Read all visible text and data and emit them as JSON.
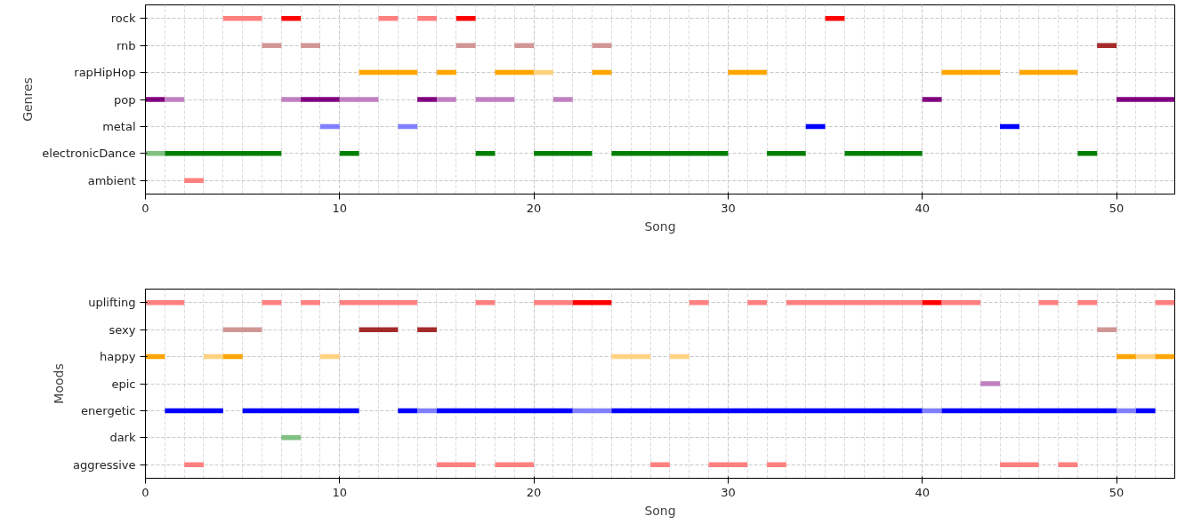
{
  "chart_data": [
    {
      "type": "bar",
      "orientation": "horizontal",
      "xlabel": "Song",
      "ylabel": "Genres",
      "categories": [
        "rock",
        "rnb",
        "rapHipHop",
        "pop",
        "metal",
        "electronicDance",
        "ambient"
      ],
      "xlim": [
        0,
        53
      ],
      "xticks": [
        0,
        10,
        20,
        30,
        40,
        50
      ],
      "grid": true,
      "series": [
        {
          "base": [
            4,
            6,
            11,
            0,
            9,
            0,
            2
          ],
          "values": [
            2,
            1,
            3,
            1,
            1,
            1,
            1
          ],
          "colors": [
            "#ff8080",
            "#d29595",
            "#ffa500",
            "#800080",
            "#8080ff",
            "#80c080",
            "#ff8080"
          ]
        },
        {
          "base": [
            7,
            8,
            15,
            1,
            13,
            1,
            null
          ],
          "values": [
            1,
            1,
            1,
            1,
            1,
            6,
            null
          ],
          "colors": [
            "#ff0000",
            "#d29595",
            "#ffa500",
            "#c080c0",
            "#8080ff",
            "#008000",
            null
          ]
        },
        {
          "base": [
            12,
            16,
            18,
            7,
            34,
            10,
            null
          ],
          "values": [
            1,
            1,
            2,
            1,
            1,
            1,
            null
          ],
          "colors": [
            "#ff8080",
            "#d29595",
            "#ffa500",
            "#c080c0",
            "#0000ff",
            "#008000",
            null
          ]
        },
        {
          "base": [
            14,
            19,
            20,
            8,
            44,
            17,
            null
          ],
          "values": [
            1,
            1,
            1,
            2,
            1,
            1,
            null
          ],
          "colors": [
            "#ff8080",
            "#d29595",
            "#ffd280",
            "#800080",
            "#0000ff",
            "#008000",
            null
          ]
        },
        {
          "base": [
            16,
            23,
            23,
            10,
            null,
            20,
            null
          ],
          "values": [
            1,
            1,
            1,
            2,
            null,
            3,
            null
          ],
          "colors": [
            "#ff0000",
            "#d29595",
            "#ffa500",
            "#c080c0",
            null,
            "#008000",
            null
          ]
        },
        {
          "base": [
            35,
            49,
            30,
            14,
            null,
            24,
            null
          ],
          "values": [
            1,
            1,
            2,
            1,
            null,
            6,
            null
          ],
          "colors": [
            "#ff0000",
            "#a52a2a",
            "#ffa500",
            "#800080",
            null,
            "#008000",
            null
          ]
        },
        {
          "base": [
            null,
            null,
            41,
            15,
            null,
            32,
            null
          ],
          "values": [
            null,
            null,
            3,
            1,
            null,
            2,
            null
          ],
          "colors": [
            null,
            null,
            "#ffa500",
            "#c080c0",
            null,
            "#008000",
            null
          ]
        },
        {
          "base": [
            null,
            null,
            45,
            17,
            null,
            36,
            null
          ],
          "values": [
            null,
            null,
            3,
            2,
            null,
            4,
            null
          ],
          "colors": [
            null,
            null,
            "#ffa500",
            "#c080c0",
            null,
            "#008000",
            null
          ]
        },
        {
          "base": [
            null,
            null,
            null,
            21,
            null,
            48,
            null
          ],
          "values": [
            null,
            null,
            null,
            1,
            null,
            1,
            null
          ],
          "colors": [
            null,
            null,
            null,
            "#c080c0",
            null,
            "#008000",
            null
          ]
        },
        {
          "base": [
            null,
            null,
            null,
            40,
            null,
            null,
            null
          ],
          "values": [
            null,
            null,
            null,
            1,
            null,
            null,
            null
          ],
          "colors": [
            null,
            null,
            null,
            "#800080",
            null,
            null,
            null
          ]
        },
        {
          "base": [
            null,
            null,
            null,
            50,
            null,
            null,
            null
          ],
          "values": [
            null,
            null,
            null,
            3,
            null,
            null,
            null
          ],
          "colors": [
            null,
            null,
            null,
            "#800080",
            null,
            null,
            null
          ]
        }
      ]
    },
    {
      "type": "bar",
      "orientation": "horizontal",
      "xlabel": "Song",
      "ylabel": "Moods",
      "categories": [
        "uplifting",
        "sexy",
        "happy",
        "epic",
        "energetic",
        "dark",
        "aggressive"
      ],
      "xlim": [
        0,
        53
      ],
      "xticks": [
        0,
        10,
        20,
        30,
        40,
        50
      ],
      "grid": true,
      "series": [
        {
          "base": [
            0,
            4,
            0,
            43,
            1,
            7,
            2
          ],
          "values": [
            2,
            2,
            1,
            1,
            3,
            1,
            1
          ],
          "colors": [
            "#ff8080",
            "#d29595",
            "#ffa500",
            "#c080c0",
            "#0000ff",
            "#80c080",
            "#ff8080"
          ]
        },
        {
          "base": [
            6,
            11,
            3,
            null,
            5,
            null,
            15
          ],
          "values": [
            1,
            2,
            1,
            null,
            6,
            null,
            2
          ],
          "colors": [
            "#ff8080",
            "#a52a2a",
            "#ffd280",
            null,
            "#0000ff",
            null,
            "#ff8080"
          ]
        },
        {
          "base": [
            8,
            14,
            4,
            null,
            13,
            null,
            18
          ],
          "values": [
            1,
            1,
            1,
            null,
            1,
            null,
            2
          ],
          "colors": [
            "#ff8080",
            "#a52a2a",
            "#ffa500",
            null,
            "#0000ff",
            null,
            "#ff8080"
          ]
        },
        {
          "base": [
            10,
            49,
            9,
            null,
            14,
            null,
            26
          ],
          "values": [
            4,
            1,
            1,
            null,
            1,
            null,
            1
          ],
          "colors": [
            "#ff8080",
            "#d29595",
            "#ffd280",
            null,
            "#8080ff",
            null,
            "#ff8080"
          ]
        },
        {
          "base": [
            17,
            null,
            24,
            null,
            15,
            null,
            29
          ],
          "values": [
            1,
            null,
            2,
            null,
            7,
            null,
            2
          ],
          "colors": [
            "#ff8080",
            null,
            "#ffd280",
            null,
            "#0000ff",
            null,
            "#ff8080"
          ]
        },
        {
          "base": [
            20,
            null,
            27,
            null,
            22,
            null,
            32
          ],
          "values": [
            2,
            null,
            1,
            null,
            2,
            null,
            1
          ],
          "colors": [
            "#ff8080",
            null,
            "#ffd280",
            null,
            "#8080ff",
            null,
            "#ff8080"
          ]
        },
        {
          "base": [
            22,
            null,
            50,
            null,
            24,
            null,
            44
          ],
          "values": [
            2,
            null,
            1,
            null,
            16,
            null,
            2
          ],
          "colors": [
            "#ff0000",
            null,
            "#ffa500",
            null,
            "#0000ff",
            null,
            "#ff8080"
          ]
        },
        {
          "base": [
            28,
            null,
            51,
            null,
            40,
            null,
            47
          ],
          "values": [
            1,
            null,
            1,
            null,
            1,
            null,
            1
          ],
          "colors": [
            "#ff8080",
            null,
            "#ffd280",
            null,
            "#8080ff",
            null,
            "#ff8080"
          ]
        },
        {
          "base": [
            31,
            null,
            52,
            null,
            41,
            null,
            null
          ],
          "values": [
            1,
            null,
            1,
            null,
            9,
            null,
            null
          ],
          "colors": [
            "#ff8080",
            null,
            "#ffa500",
            null,
            "#0000ff",
            null,
            null
          ]
        },
        {
          "base": [
            33,
            null,
            null,
            null,
            50,
            null,
            null
          ],
          "values": [
            7,
            null,
            null,
            null,
            1,
            null,
            null
          ],
          "colors": [
            "#ff8080",
            null,
            null,
            null,
            "#8080ff",
            null,
            null
          ]
        },
        {
          "base": [
            40,
            null,
            null,
            null,
            51,
            null,
            null
          ],
          "values": [
            1,
            null,
            null,
            null,
            1,
            null,
            null
          ],
          "colors": [
            "#ff0000",
            null,
            null,
            null,
            "#0000ff",
            null,
            null
          ]
        },
        {
          "base": [
            41,
            null,
            null,
            null,
            null,
            null,
            null
          ],
          "values": [
            2,
            null,
            null,
            null,
            null,
            null,
            null
          ],
          "colors": [
            "#ff8080",
            null,
            null,
            null,
            null,
            null,
            null
          ]
        },
        {
          "base": [
            46,
            null,
            null,
            null,
            null,
            null,
            null
          ],
          "values": [
            1,
            null,
            null,
            null,
            null,
            null,
            null
          ],
          "colors": [
            "#ff8080",
            null,
            null,
            null,
            null,
            null,
            null
          ]
        },
        {
          "base": [
            48,
            null,
            null,
            null,
            null,
            null,
            null
          ],
          "values": [
            1,
            null,
            null,
            null,
            null,
            null,
            null
          ],
          "colors": [
            "#ff8080",
            null,
            null,
            null,
            null,
            null,
            null
          ]
        },
        {
          "base": [
            52,
            null,
            null,
            null,
            null,
            null,
            null
          ],
          "values": [
            1,
            null,
            null,
            null,
            null,
            null,
            null
          ],
          "colors": [
            "#ff8080",
            null,
            null,
            null,
            null,
            null,
            null
          ]
        }
      ]
    }
  ]
}
